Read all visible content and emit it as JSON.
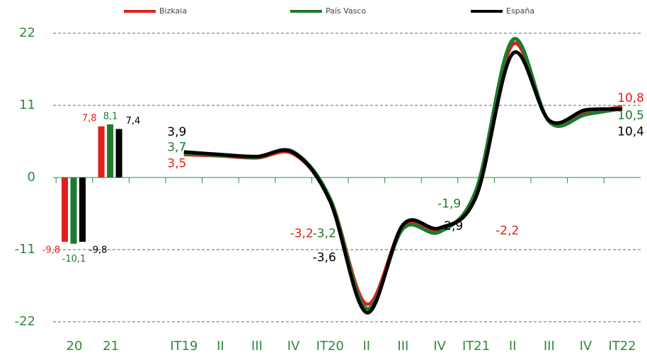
{
  "chart_data": [
    {
      "type": "bar",
      "categories": [
        "20",
        "21"
      ],
      "ylim": [
        -22,
        22
      ],
      "yticks": [
        22,
        11,
        0,
        -11,
        -22
      ],
      "grid": true,
      "series": [
        {
          "name": "Bizkaia",
          "color": "#e0201b",
          "values": [
            -9.8,
            7.8
          ],
          "value_labels": [
            "-9,8",
            "7,8"
          ]
        },
        {
          "name": "País Vasco",
          "color": "#1e7a2e",
          "values": [
            -10.1,
            8.1
          ],
          "value_labels": [
            "-10,1",
            "8,1"
          ]
        },
        {
          "name": "España",
          "color": "#000000",
          "values": [
            -9.8,
            7.4
          ],
          "value_labels": [
            "-9,8",
            "7,4"
          ]
        }
      ]
    },
    {
      "type": "line",
      "categories": [
        "IT19",
        "II",
        "III",
        "IV",
        "IT20",
        "II",
        "III",
        "IV",
        "IT21",
        "II",
        "III",
        "IV",
        "IT22"
      ],
      "ylim": [
        -22,
        22
      ],
      "yticks": [
        22,
        11,
        0,
        -11,
        -22
      ],
      "series": [
        {
          "name": "Bizkaia",
          "color": "#e0201b",
          "values": [
            3.5,
            3.3,
            3.0,
            3.6,
            -3.2,
            -19.3,
            -7.5,
            -8.0,
            -2.2,
            20.3,
            8.6,
            9.8,
            10.8
          ],
          "value_labels": [
            "3,5",
            null,
            null,
            null,
            "-3,2",
            null,
            null,
            null,
            "-2,2",
            null,
            null,
            null,
            "10,8"
          ]
        },
        {
          "name": "País Vasco",
          "color": "#1e7a2e",
          "values": [
            3.7,
            3.4,
            3.1,
            3.9,
            -3.2,
            -20.0,
            -7.8,
            -8.3,
            -1.9,
            21.0,
            8.5,
            9.6,
            10.5
          ],
          "value_labels": [
            "3,7",
            null,
            null,
            null,
            "-3,2",
            null,
            null,
            null,
            "-1,9",
            null,
            null,
            null,
            "10,5"
          ]
        },
        {
          "name": "España",
          "color": "#000000",
          "values": [
            3.9,
            3.5,
            3.2,
            3.8,
            -3.6,
            -20.6,
            -7.2,
            -7.7,
            -2.9,
            18.9,
            8.7,
            10.3,
            10.4
          ],
          "value_labels": [
            "3,9",
            null,
            null,
            null,
            "-3,6",
            null,
            null,
            null,
            "-2,9",
            null,
            null,
            null,
            "10,4"
          ]
        }
      ]
    }
  ]
}
